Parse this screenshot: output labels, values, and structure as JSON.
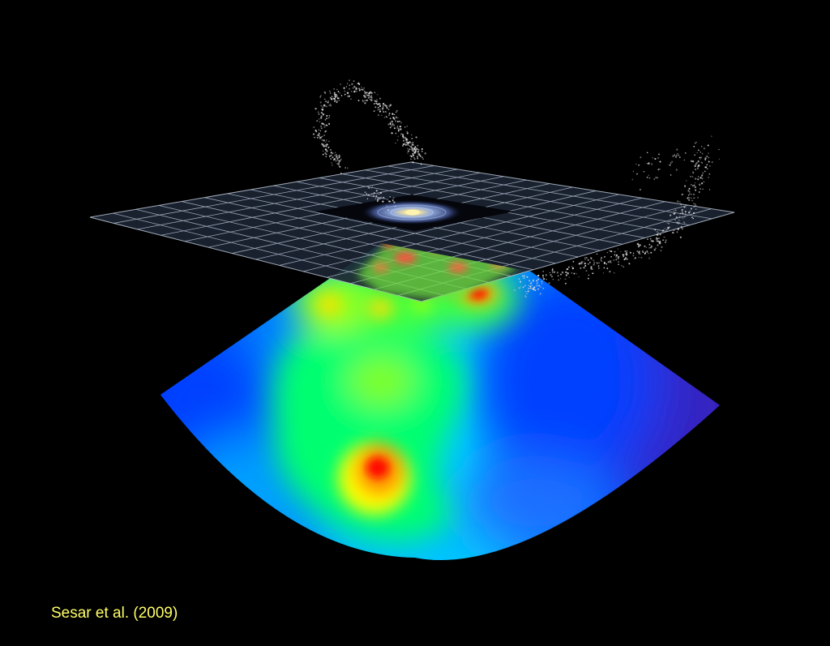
{
  "credit": {
    "text": "Sesar et al. (2009)"
  },
  "colors": {
    "background": "#000000",
    "grid_fill": "#1c2433",
    "grid_line": "#aeb8c8",
    "credit_text": "#ffff66",
    "density_scale": [
      "#3a1ea8",
      "#0033ff",
      "#00a0ff",
      "#00ffff",
      "#00ff66",
      "#66ff00",
      "#ffff00",
      "#ff8800",
      "#ff0000"
    ]
  },
  "elements": {
    "galactic_plane": "grid-plane",
    "galaxy": "spiral-galaxy-image",
    "density_map": "stellar-density-fan-map",
    "stellar_streams": "star-particle-streams"
  }
}
